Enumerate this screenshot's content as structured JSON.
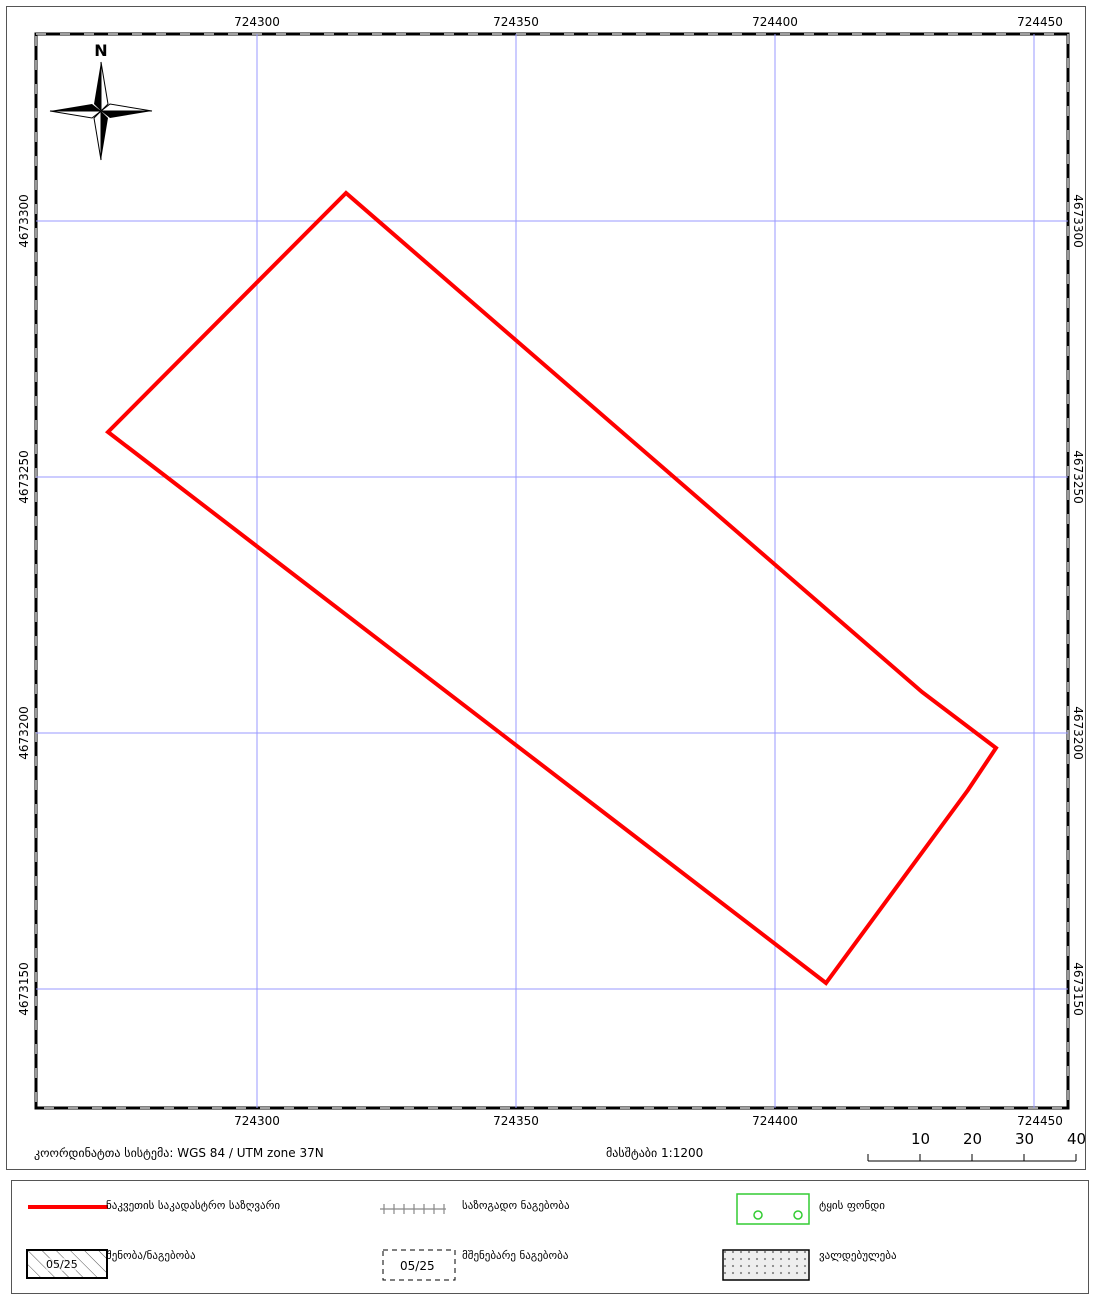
{
  "map": {
    "north_label": "N",
    "grid": {
      "x_ticks": [
        "724300",
        "724350",
        "724400",
        "724450"
      ],
      "y_ticks": [
        "4673300",
        "4673250",
        "4673200",
        "4673150"
      ]
    },
    "colors": {
      "boundary": "#ff0000",
      "grid": "#9999ff",
      "frame": "#000000"
    }
  },
  "info": {
    "crs_text": "კოორდინატთა სისტემა: WGS 84 / UTM zone 37N",
    "scale_text": "მასშტაბი 1:1200",
    "scalebar_labels": [
      "10",
      "20",
      "30",
      "40"
    ]
  },
  "legend": {
    "items": [
      {
        "label": "ნაკვეთის საკადასტრო საზღვარი",
        "symbol": "red-line"
      },
      {
        "label": "საზოგადო ნაგებობა",
        "symbol": "railway-line"
      },
      {
        "label": "ტყის ფონდი",
        "symbol": "green-circles"
      },
      {
        "label": "შენობა/ნაგებობა",
        "symbol": "hatched-box",
        "sample": "05/25"
      },
      {
        "label": "მშენებარე ნაგებობა",
        "symbol": "dashed-box",
        "sample": "05/25"
      },
      {
        "label": "ვალდებულება",
        "symbol": "dotted-box"
      }
    ]
  }
}
